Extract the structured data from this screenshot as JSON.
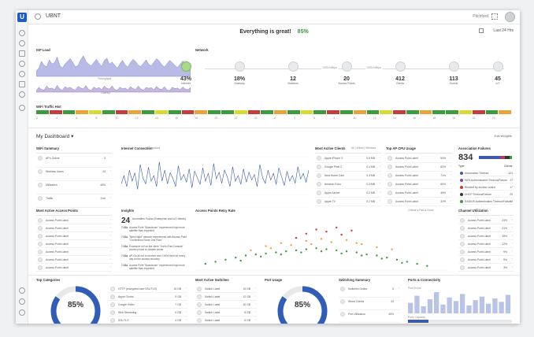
{
  "app": {
    "logo": "U",
    "site_name": "UBNT",
    "user_name": "Pitchford",
    "range": "Last 24 Hrs"
  },
  "status": {
    "text": "Everything is great!",
    "pct": "85%"
  },
  "isp": {
    "title": "ISP Load",
    "sub1": "Throughput",
    "sub2": "Latency"
  },
  "network": {
    "title": "Network",
    "link1": "10/10 Mbps",
    "link2": "10/10 Mbps",
    "nodes": [
      {
        "value": "43%",
        "label": "Internet"
      },
      {
        "value": "18%",
        "label": "Gateway"
      },
      {
        "value": "12",
        "label": "Switches"
      },
      {
        "value": "20",
        "label": "Access Points"
      },
      {
        "value": "412",
        "label": "Clients"
      },
      {
        "value": "113",
        "label": "Guests"
      },
      {
        "value": "45",
        "label": "IoT"
      }
    ]
  },
  "wifi_exp": {
    "title": "WiFi Traffic Hist",
    "hours": [
      "2",
      "4",
      "6",
      "8",
      "10",
      "12",
      "14",
      "16",
      "18",
      "20",
      "22",
      "24",
      "2",
      "4",
      "6",
      "8",
      "10",
      "12",
      "14",
      "16",
      "18",
      "20",
      "22",
      "24"
    ],
    "colors": [
      "#3a9b3f",
      "#c43c3c",
      "#3a9b3f",
      "#e8a33b",
      "#d9d935",
      "#3a9b3f",
      "#c43c3c",
      "#e8a33b",
      "#3a9b3f",
      "#d9d935",
      "#3a9b3f",
      "#c43c3c",
      "#e8a33b",
      "#3a9b3f",
      "#3a9b3f",
      "#d9d935",
      "#c43c3c",
      "#3a9b3f",
      "#e8a33b",
      "#3a9b3f",
      "#d9d935",
      "#3a9b3f",
      "#c43c3c",
      "#3a9b3f",
      "#e8a33b",
      "#3a9b3f",
      "#d9d935",
      "#c43c3c",
      "#3a9b3f",
      "#e8a33b",
      "#3a9b3f",
      "#3a9b3f",
      "#d9d935",
      "#c43c3c",
      "#3a9b3f",
      "#e8a33b"
    ]
  },
  "dashboard": {
    "title": "My Dashboard ▾",
    "edit": "Edit Widgets"
  },
  "wifi_summary": {
    "title": "WiFi Summary",
    "rows": [
      {
        "name": "AP's Online",
        "value": "3"
      },
      {
        "name": "Wireless Users",
        "value": "24"
      },
      {
        "name": "Utilization",
        "value": "45%"
      },
      {
        "name": "Traffic",
        "value": "9 kb"
      }
    ]
  },
  "interference": {
    "title": "Internet Connection",
    "sub": "Download"
  },
  "most_active_clients": {
    "title": "Most Active Clients",
    "tabs": "All  |  Wired  |  Wireless",
    "rows": [
      {
        "name": "Apple iPhone X",
        "value": "0.5 MB"
      },
      {
        "name": "Google Pixel 2",
        "value": "0.4 MB"
      },
      {
        "name": "Nest Home Cam",
        "value": "0.3 MB"
      },
      {
        "name": "Amazon Echo",
        "value": "0.3 MB"
      },
      {
        "name": "Apple Airport",
        "value": "0.2 MB"
      },
      {
        "name": "Apple TV",
        "value": "0.2 MB"
      }
    ]
  },
  "top_ap_usage": {
    "title": "Top AP CPU Usage",
    "rows": [
      {
        "name": "Access Point Label",
        "value": "94%"
      },
      {
        "name": "Access Point Label",
        "value": "82%"
      },
      {
        "name": "Access Point Label",
        "value": "71%"
      },
      {
        "name": "Access Point Label",
        "value": "66%"
      },
      {
        "name": "Access Point Label",
        "value": "45%"
      },
      {
        "name": "Access Point Label",
        "value": "32%"
      }
    ]
  },
  "association_failures": {
    "title": "Association Failures",
    "value": "834",
    "col1": "Type",
    "col2": "Clients",
    "rows": [
      {
        "name": "Association Timeout",
        "value": "121",
        "color": "#3a5ba8"
      },
      {
        "name": "WPA Authentication Timeout/Failure",
        "value": "17",
        "color": "#8a3bb0"
      },
      {
        "name": "Blocked by access control",
        "value": "17",
        "color": "#c43c3c"
      },
      {
        "name": "DHCP Timeout/Failure",
        "value": "29",
        "color": "#333333"
      },
      {
        "name": "RADIUS Authentication Timeout/Failure",
        "value": "13",
        "color": "#3a9b3f"
      }
    ]
  },
  "most_active_aps": {
    "title": "Most Active Access Points",
    "rows": [
      "Access Point Label",
      "Access Point Label",
      "Access Point Label",
      "Access Point Label",
      "Access Point Label",
      "Access Point Label",
      "Access Point Label"
    ]
  },
  "insights": {
    "title": "Insights",
    "big_num": "24",
    "big_txt": "Anomalies Found (Enterprise and IoT clients)",
    "items": [
      {
        "time": "7:31a",
        "text": "Access Point \"Boardroom\" experienced high more satellite than expected"
      },
      {
        "time": "7:31a",
        "text": "\"Best Night\" network experienced with Access Point \"Conference Room 2nd Floor\""
      },
      {
        "time": "7:31a",
        "text": "Excessive roll on the client \"Joel's iPad Console\" cloned phone to outside center"
      },
      {
        "time": "7:31a",
        "text": "AP-Go all out to recover over 100% fixed for every day on the access recovery"
      },
      {
        "time": "7:31a",
        "text": "Access Point \"Boardroom\" experienced high more satellite than expected"
      }
    ]
  },
  "ap_radio": {
    "title": "Access Points Retry Rate",
    "legend": "Critical  ●  Fair  ●  Good"
  },
  "channel_util": {
    "title": "Channel Utilization",
    "rows": [
      {
        "name": "Access Point Label",
        "value": "24%"
      },
      {
        "name": "Access Point Label",
        "value": "21%"
      },
      {
        "name": "Access Point Label",
        "value": "15%"
      },
      {
        "name": "Access Point Label",
        "value": "12%"
      },
      {
        "name": "Access Point Label",
        "value": "9%"
      },
      {
        "name": "Access Point Label",
        "value": "5%"
      },
      {
        "name": "Access Point Label",
        "value": "3%"
      }
    ]
  },
  "top_categories": {
    "title": "Top Categories",
    "pct": "85%",
    "rows": [
      {
        "name": "HTTP (encrypted over SSL/TLS)",
        "value": "15 GB"
      },
      {
        "name": "Apple iTunes",
        "value": "9 GB"
      },
      {
        "name": "Google Video",
        "value": "7 GB"
      },
      {
        "name": "Web Streaming",
        "value": "5 GB"
      },
      {
        "name": "SSL/TLS",
        "value": "4 GB"
      }
    ]
  },
  "most_active_switches": {
    "title": "Most Active Switches",
    "rows": [
      {
        "name": "Switch Label",
        "value": "15 GB"
      },
      {
        "name": "Switch Label",
        "value": "12 GB"
      },
      {
        "name": "Switch Label",
        "value": "10 GB"
      },
      {
        "name": "Switch Label",
        "value": "8 GB"
      },
      {
        "name": "Switch Label",
        "value": "6 GB"
      }
    ]
  },
  "port_usage": {
    "title": "Port Usage",
    "pct": "85%"
  },
  "switching_summary": {
    "title": "Switching Summary",
    "rows": [
      {
        "name": "Switches Online",
        "value": "5"
      },
      {
        "name": "Wired Clients",
        "value": "24"
      },
      {
        "name": "Port Utilization",
        "value": "45%"
      }
    ]
  },
  "ports_connectivity": {
    "title": "Ports & Connectivity",
    "sub1": "Port Errors",
    "sub2": "Ports Capacity"
  },
  "chart_data": [
    {
      "type": "area",
      "title": "Throughput",
      "series": [
        {
          "values": [
            20,
            30,
            55,
            40,
            35,
            60,
            45,
            50,
            70,
            40,
            30,
            45,
            55,
            65,
            50,
            35,
            40,
            60,
            75,
            55,
            45,
            38,
            50,
            62,
            48,
            36,
            58,
            66,
            44,
            52,
            40,
            30,
            46,
            58,
            42,
            34,
            50,
            62,
            54,
            40,
            36,
            48,
            60,
            44,
            38,
            52,
            64,
            56,
            42,
            34,
            46,
            58,
            50,
            40,
            32,
            44,
            56,
            48,
            38,
            30
          ]
        }
      ]
    },
    {
      "type": "area",
      "title": "Latency",
      "series": [
        {
          "values": [
            10,
            35,
            20,
            15,
            45,
            25,
            30,
            18,
            50,
            22,
            14,
            40,
            28,
            36,
            20,
            16,
            42,
            30,
            24,
            48,
            20,
            12,
            38,
            26,
            34,
            18,
            44,
            28,
            22,
            46,
            18,
            14,
            36,
            24,
            30,
            16,
            40,
            26,
            20,
            44,
            22,
            14,
            34,
            28,
            32,
            18,
            42,
            24,
            20,
            40,
            16,
            12,
            36,
            26,
            30,
            18,
            38,
            22,
            18,
            34
          ]
        }
      ]
    },
    {
      "type": "line",
      "title": "Internet Connection",
      "series": [
        {
          "values": [
            45,
            60,
            40,
            70,
            50,
            65,
            35,
            80,
            55,
            45,
            75,
            50,
            60,
            40,
            85,
            50,
            70,
            45,
            65,
            55,
            40,
            78,
            52,
            62,
            48,
            72,
            38,
            68,
            56,
            44,
            74,
            50,
            64,
            42,
            82,
            54,
            66,
            46,
            70,
            58,
            40,
            76,
            50,
            60,
            44,
            72,
            48,
            66,
            52,
            62,
            40,
            80,
            56,
            46,
            70,
            52,
            64,
            44,
            74,
            58,
            42,
            68,
            50,
            60,
            46,
            76,
            54,
            64,
            48,
            70
          ]
        }
      ]
    },
    {
      "type": "scatter",
      "title": "Access Points Retry Rate",
      "series": [
        {
          "name": "Critical",
          "color": "#c43c3c",
          "points": [
            [
              40,
              62
            ],
            [
              44,
              70
            ],
            [
              48,
              78
            ],
            [
              52,
              74
            ],
            [
              56,
              82
            ],
            [
              58,
              68
            ],
            [
              62,
              76
            ]
          ]
        },
        {
          "name": "Fair",
          "color": "#e8a33b",
          "points": [
            [
              22,
              38
            ],
            [
              28,
              46
            ],
            [
              34,
              52
            ],
            [
              38,
              48
            ],
            [
              44,
              56
            ],
            [
              50,
              60
            ],
            [
              54,
              54
            ],
            [
              60,
              58
            ],
            [
              66,
              50
            ],
            [
              72,
              44
            ],
            [
              78,
              40
            ],
            [
              30,
              42
            ],
            [
              46,
              50
            ],
            [
              64,
              52
            ]
          ]
        },
        {
          "name": "Good",
          "color": "#3a9b3f",
          "points": [
            [
              4,
              12
            ],
            [
              8,
              16
            ],
            [
              12,
              20
            ],
            [
              16,
              24
            ],
            [
              20,
              28
            ],
            [
              24,
              30
            ],
            [
              28,
              32
            ],
            [
              32,
              34
            ],
            [
              36,
              36
            ],
            [
              40,
              38
            ],
            [
              44,
              40
            ],
            [
              48,
              42
            ],
            [
              52,
              40
            ],
            [
              56,
              38
            ],
            [
              60,
              36
            ],
            [
              64,
              34
            ],
            [
              68,
              30
            ],
            [
              72,
              28
            ],
            [
              76,
              24
            ],
            [
              80,
              20
            ],
            [
              84,
              16
            ],
            [
              88,
              12
            ],
            [
              92,
              8
            ],
            [
              18,
              18
            ],
            [
              26,
              26
            ],
            [
              34,
              30
            ],
            [
              42,
              34
            ],
            [
              50,
              36
            ],
            [
              58,
              32
            ],
            [
              66,
              28
            ],
            [
              74,
              22
            ],
            [
              82,
              14
            ]
          ]
        }
      ]
    },
    {
      "type": "pie",
      "title": "Top Categories",
      "values": [
        85,
        15
      ]
    },
    {
      "type": "pie",
      "title": "Port Usage",
      "values": [
        85,
        15
      ]
    },
    {
      "type": "bar",
      "title": "Port Errors",
      "values": [
        12,
        20,
        8,
        16,
        24,
        10,
        18,
        14,
        22,
        9,
        15,
        19,
        11,
        17,
        13,
        21
      ]
    }
  ]
}
